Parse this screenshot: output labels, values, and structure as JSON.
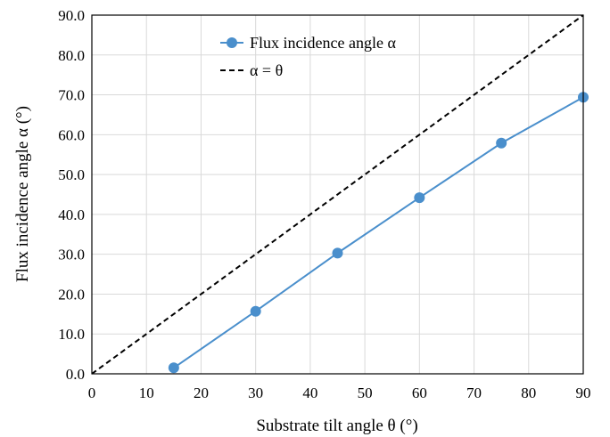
{
  "chart_data": {
    "type": "line",
    "title": "",
    "xlabel": "Substrate tilt angle θ (°)",
    "ylabel": "Flux incidence angle α (°)",
    "xlim": [
      0,
      90
    ],
    "ylim": [
      0,
      90
    ],
    "x_ticks": [
      "0",
      "10",
      "20",
      "30",
      "40",
      "50",
      "60",
      "70",
      "80",
      "90"
    ],
    "y_ticks": [
      "0.0",
      "10.0",
      "20.0",
      "30.0",
      "40.0",
      "50.0",
      "60.0",
      "70.0",
      "80.0",
      "90.0"
    ],
    "grid": true,
    "legend_position": "top-center",
    "series": [
      {
        "name": "Flux incidence angle α",
        "style": "solid-line-circle-markers",
        "color": "#4a8fcc",
        "x": [
          15,
          30,
          45,
          60,
          75,
          90
        ],
        "y": [
          1.5,
          15.7,
          30.3,
          44.2,
          57.9,
          69.4
        ]
      },
      {
        "name": "α = θ",
        "style": "dashed-line",
        "color": "#000000",
        "x": [
          0,
          90
        ],
        "y": [
          0,
          90
        ]
      }
    ]
  }
}
